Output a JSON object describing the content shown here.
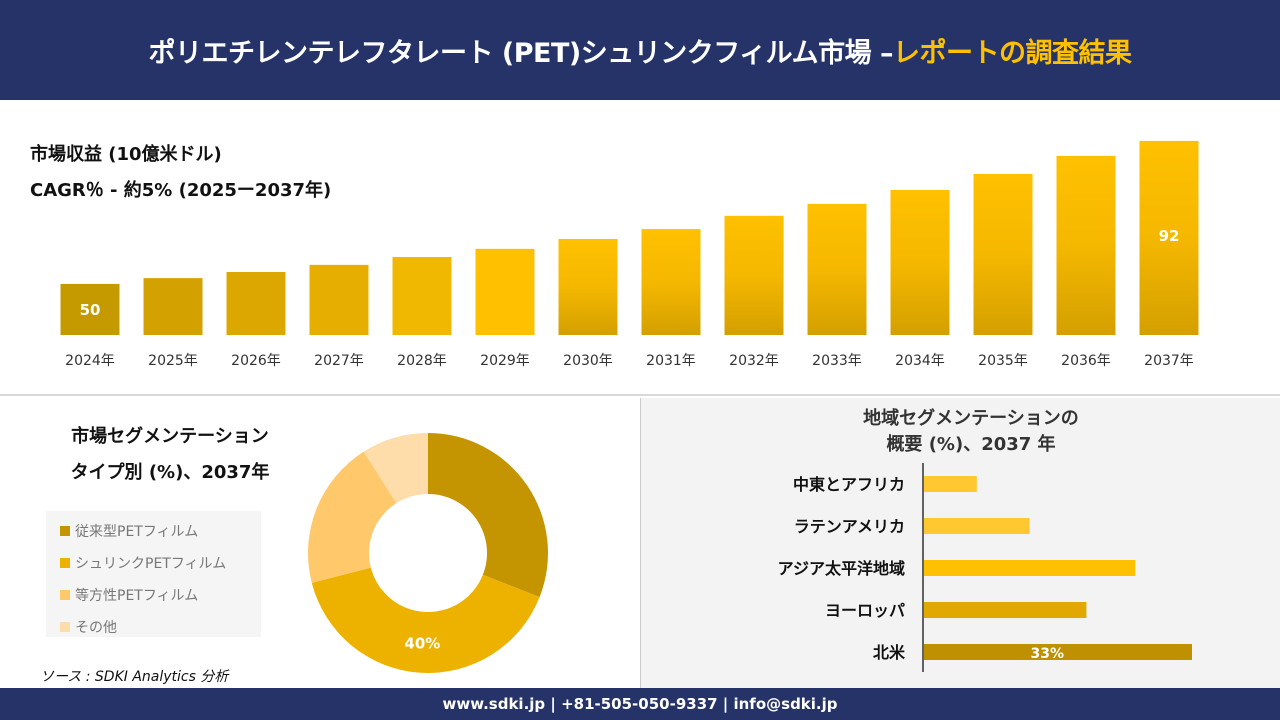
{
  "header": {
    "title_main": "ポリエチレンテレフタレート (PET)シュリンクフィルム市場 –",
    "title_highlight": "レポートの調査結果"
  },
  "revenue": {
    "subtitle": "市場収益 (10億米ドル)",
    "cagr": "CAGR％ - 約5% (2025ー2037年)"
  },
  "segment": {
    "title_line1": "市場セグメンテーション",
    "title_line2": "タイプ別 (%)、2037年",
    "source": "ソース : SDKI Analytics 分析"
  },
  "region": {
    "title_line1": "地域セグメンテーションの",
    "title_line2": "概要 (%)、2037 年"
  },
  "footer": {
    "contact": "www.sdki.jp | +81-505-050-9337 | info@sdki.jp"
  },
  "chart_data": [
    {
      "type": "bar",
      "categories": [
        "2024年",
        "2025年",
        "2026年",
        "2027年",
        "2028年",
        "2029年",
        "2030年",
        "2031年",
        "2032年",
        "2033年",
        "2034年",
        "2035年",
        "2036年",
        "2037年"
      ],
      "values": [
        50,
        51.7,
        53.5,
        55.6,
        57.9,
        60.3,
        63.2,
        66.1,
        70,
        73.5,
        77.6,
        82.3,
        87.6,
        92
      ],
      "data_labels": {
        "2024年": "50",
        "2037年": "92"
      },
      "colors": [
        "#C49A00",
        "#D4A200",
        "#DCA800",
        "#E6AF00",
        "#F0B800",
        "#FFC000",
        "#FFC000",
        "#FFC000",
        "#FFC000",
        "#FFC000",
        "#FFC000",
        "#FFC000",
        "#FFC000",
        "#FFC000"
      ],
      "grid": false
    },
    {
      "type": "pie",
      "style": "donut",
      "categories": [
        "従来型PETフィルム",
        "シュリンクPETフィルム",
        "等方性PETフィルム",
        "その他"
      ],
      "values": [
        31,
        40,
        20,
        9
      ],
      "data_labels": [
        "",
        "40%",
        "",
        ""
      ],
      "colors": [
        "#C49500",
        "#EDB200",
        "#FFC96B",
        "#FFDDAA"
      ],
      "legend": "left"
    },
    {
      "type": "bar",
      "orientation": "horizontal",
      "categories": [
        "中東とアフリカ",
        "ラテンアメリカ",
        "アジア太平洋地域",
        "ヨーロッパ",
        "北米"
      ],
      "values": [
        6.5,
        13,
        26,
        20,
        33
      ],
      "data_labels": [
        "",
        "",
        "",
        "",
        "33%"
      ],
      "colors": [
        "#FFC830",
        "#FFC830",
        "#FFC000",
        "#E0A800",
        "#BF9000"
      ]
    }
  ]
}
